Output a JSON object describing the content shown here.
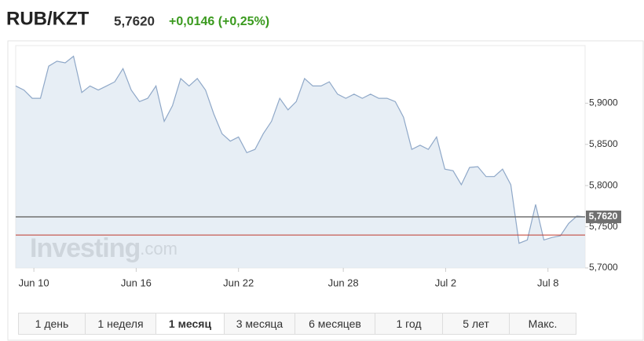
{
  "header": {
    "symbol": "RUB/KZT",
    "price": "5,7620",
    "change": "+0,0146 (+0,25%)"
  },
  "chart_data": {
    "type": "area",
    "series": [
      {
        "color": "#8fa8c8",
        "values": [
          5.921,
          5.916,
          5.906,
          5.906,
          5.945,
          5.951,
          5.949,
          5.957,
          5.913,
          5.921,
          5.916,
          5.921,
          5.926,
          5.942,
          5.916,
          5.902,
          5.906,
          5.921,
          5.878,
          5.897,
          5.93,
          5.921,
          5.93,
          5.916,
          5.887,
          5.863,
          5.854,
          5.859,
          5.84,
          5.844,
          5.863,
          5.878,
          5.906,
          5.892,
          5.902,
          5.93,
          5.921,
          5.921,
          5.926,
          5.911,
          5.906,
          5.911,
          5.906,
          5.911,
          5.906,
          5.906,
          5.902,
          5.883,
          5.844,
          5.849,
          5.844,
          5.859,
          5.82,
          5.818,
          5.801,
          5.822,
          5.823,
          5.811,
          5.811,
          5.82,
          5.801,
          5.73,
          5.734,
          5.777,
          5.734,
          5.737,
          5.739,
          5.754,
          5.763,
          5.762
        ]
      }
    ],
    "xlim": [
      0,
      69
    ],
    "xticks": [
      {
        "value": 2.2,
        "label": "Jun 10"
      },
      {
        "value": 14.6,
        "label": "Jun 16"
      },
      {
        "value": 27,
        "label": "Jun 22"
      },
      {
        "value": 39.7,
        "label": "Jun 28"
      },
      {
        "value": 52.1,
        "label": "Jul 2"
      },
      {
        "value": 64.5,
        "label": "Jul 8"
      }
    ],
    "ylim": [
      5.7,
      5.97
    ],
    "yticks": [
      {
        "value": 5.7,
        "label": "5,7000"
      },
      {
        "value": 5.75,
        "label": "5,7500"
      },
      {
        "value": 5.8,
        "label": "5,8000"
      },
      {
        "value": 5.85,
        "label": "5,8500"
      },
      {
        "value": 5.9,
        "label": "5,9000"
      }
    ],
    "current_line": {
      "value": 5.762,
      "label": "5,7620",
      "color": "#707070"
    },
    "reference_line": {
      "value": 5.74,
      "color": "#c0392b"
    },
    "watermark": {
      "brand": "Investing",
      "domain": ".com"
    }
  },
  "range_buttons": {
    "options": [
      "1 день",
      "1 неделя",
      "1 месяц",
      "3 месяца",
      "6 месяцев",
      "1 год",
      "5 лет",
      "Макс."
    ],
    "active": 2
  }
}
